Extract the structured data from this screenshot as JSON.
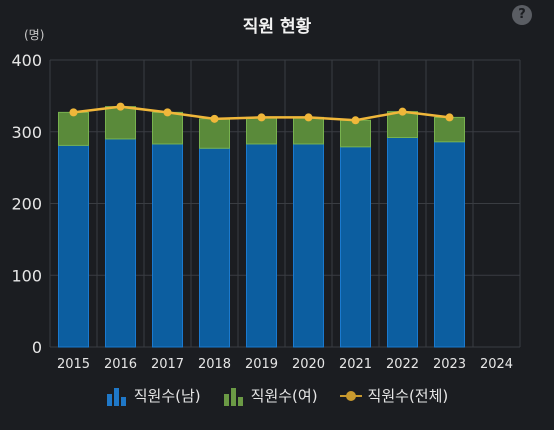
{
  "header": {
    "title": "직원 현황",
    "help_label": "?",
    "unit_label": "(명)"
  },
  "colors": {
    "male": "#0c5ea0",
    "female": "#5a8a3a",
    "total": "#f0b73a",
    "grid": "#3a3d42",
    "axis_text": "#e6e6e6"
  },
  "chart_data": {
    "type": "bar",
    "stacked": true,
    "categories": [
      "2015",
      "2016",
      "2017",
      "2018",
      "2019",
      "2020",
      "2021",
      "2022",
      "2023",
      "2024"
    ],
    "ylim": [
      0,
      400
    ],
    "yticks": [
      0,
      100,
      200,
      300,
      400
    ],
    "ylabel": "(명)",
    "xlabel": "",
    "grid": true,
    "legend": "bottom",
    "series": [
      {
        "name": "직원수(남)",
        "type": "bar",
        "values": [
          281,
          290,
          283,
          277,
          283,
          283,
          279,
          292,
          286,
          null
        ]
      },
      {
        "name": "직원수(여)",
        "type": "bar",
        "values": [
          46,
          45,
          44,
          41,
          37,
          37,
          37,
          36,
          34,
          null
        ]
      },
      {
        "name": "직원수(전체)",
        "type": "line",
        "values": [
          327,
          335,
          327,
          318,
          320,
          320,
          316,
          328,
          320,
          null
        ]
      }
    ]
  },
  "legend": {
    "items": [
      {
        "label": "직원수(남)",
        "icon": "bar-chart-icon-blue"
      },
      {
        "label": "직원수(여)",
        "icon": "bar-chart-icon-green"
      },
      {
        "label": "직원수(전체)",
        "icon": "line-marker-icon"
      }
    ]
  }
}
